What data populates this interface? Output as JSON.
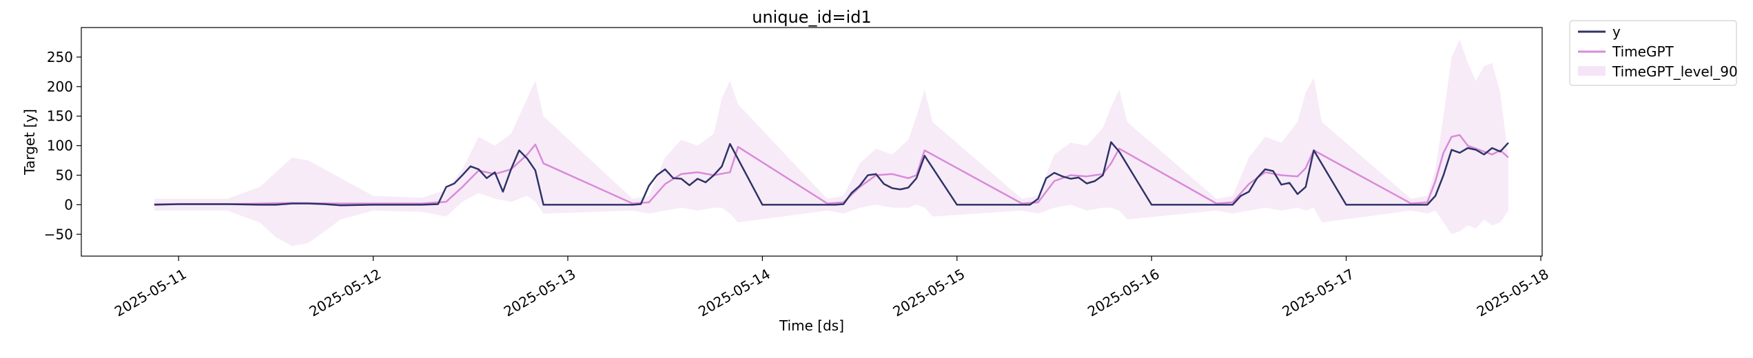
{
  "chart_data": {
    "type": "line",
    "title": "unique_id=id1",
    "xlabel": "Time [ds]",
    "ylabel": "Target [y]",
    "x_ticks": [
      "2025-05-11",
      "2025-05-12",
      "2025-05-13",
      "2025-05-14",
      "2025-05-15",
      "2025-05-16",
      "2025-05-17",
      "2025-05-18"
    ],
    "y_ticks": [
      -50,
      0,
      50,
      100,
      150,
      200,
      250
    ],
    "xlim": [
      "2025-05-10T12:00",
      "2025-05-18T00:10"
    ],
    "ylim": [
      -87,
      300
    ],
    "legend_position": "outside-top-right",
    "grid": false,
    "colors": {
      "y": "#2e3366",
      "TimeGPT": "#d98ad8",
      "band": "#f4e4f6"
    },
    "series": [
      {
        "name": "y",
        "x": [
          "2025-05-10T21:00",
          "2025-05-11T00:00",
          "2025-05-11T06:00",
          "2025-05-11T10:00",
          "2025-05-11T12:00",
          "2025-05-11T14:00",
          "2025-05-11T16:00",
          "2025-05-11T18:00",
          "2025-05-11T20:00",
          "2025-05-12T00:00",
          "2025-05-12T06:00",
          "2025-05-12T08:00",
          "2025-05-12T09:00",
          "2025-05-12T10:00",
          "2025-05-12T11:00",
          "2025-05-12T12:00",
          "2025-05-12T13:00",
          "2025-05-12T14:00",
          "2025-05-12T15:00",
          "2025-05-12T16:00",
          "2025-05-12T17:00",
          "2025-05-12T18:00",
          "2025-05-12T19:00",
          "2025-05-12T20:00",
          "2025-05-12T21:00",
          "2025-05-13T00:00",
          "2025-05-13T04:00",
          "2025-05-13T08:00",
          "2025-05-13T09:00",
          "2025-05-13T10:00",
          "2025-05-13T11:00",
          "2025-05-13T12:00",
          "2025-05-13T13:00",
          "2025-05-13T14:00",
          "2025-05-13T15:00",
          "2025-05-13T16:00",
          "2025-05-13T17:00",
          "2025-05-13T18:00",
          "2025-05-13T19:00",
          "2025-05-13T20:00",
          "2025-05-14T00:00",
          "2025-05-14T08:00",
          "2025-05-14T09:00",
          "2025-05-14T10:00",
          "2025-05-14T11:00",
          "2025-05-14T12:00",
          "2025-05-14T13:00",
          "2025-05-14T14:00",
          "2025-05-14T15:00",
          "2025-05-14T16:00",
          "2025-05-14T17:00",
          "2025-05-14T18:00",
          "2025-05-14T19:00",
          "2025-05-14T20:00",
          "2025-05-15T00:00",
          "2025-05-15T08:00",
          "2025-05-15T09:00",
          "2025-05-15T10:00",
          "2025-05-15T11:00",
          "2025-05-15T12:00",
          "2025-05-15T13:00",
          "2025-05-15T14:00",
          "2025-05-15T15:00",
          "2025-05-15T16:00",
          "2025-05-15T17:00",
          "2025-05-15T18:00",
          "2025-05-15T19:00",
          "2025-05-15T20:00",
          "2025-05-16T00:00",
          "2025-05-16T08:00",
          "2025-05-16T09:00",
          "2025-05-16T10:00",
          "2025-05-16T11:00",
          "2025-05-16T12:00",
          "2025-05-16T13:00",
          "2025-05-16T14:00",
          "2025-05-16T15:00",
          "2025-05-16T16:00",
          "2025-05-16T17:00",
          "2025-05-16T18:00",
          "2025-05-16T19:00",
          "2025-05-16T20:00",
          "2025-05-17T00:00",
          "2025-05-17T08:00",
          "2025-05-17T09:00",
          "2025-05-17T10:00",
          "2025-05-17T11:00",
          "2025-05-17T12:00",
          "2025-05-17T13:00",
          "2025-05-17T14:00",
          "2025-05-17T15:00",
          "2025-05-17T16:00",
          "2025-05-17T17:00",
          "2025-05-17T18:00",
          "2025-05-17T19:00",
          "2025-05-17T20:00"
        ],
        "values": [
          0,
          1,
          1,
          0,
          0,
          2,
          2,
          1,
          -1,
          0,
          0,
          1,
          30,
          36,
          50,
          65,
          60,
          45,
          55,
          22,
          60,
          92,
          78,
          58,
          0,
          0,
          0,
          0,
          1,
          32,
          50,
          60,
          45,
          44,
          33,
          44,
          38,
          50,
          65,
          103,
          0,
          0,
          0,
          1,
          20,
          32,
          50,
          52,
          35,
          28,
          26,
          29,
          45,
          83,
          0,
          0,
          0,
          10,
          45,
          54,
          48,
          44,
          46,
          36,
          40,
          50,
          106,
          90,
          0,
          0,
          0,
          0,
          15,
          22,
          45,
          60,
          57,
          34,
          37,
          18,
          30,
          92,
          0,
          0,
          0,
          0,
          15,
          50,
          93,
          88,
          96,
          93,
          85,
          96,
          90,
          105
        ]
      },
      {
        "name": "TimeGPT",
        "x": [
          "2025-05-10T21:00",
          "2025-05-11T06:00",
          "2025-05-11T10:00",
          "2025-05-11T14:00",
          "2025-05-11T20:00",
          "2025-05-12T06:00",
          "2025-05-12T09:00",
          "2025-05-12T11:00",
          "2025-05-12T13:00",
          "2025-05-12T15:00",
          "2025-05-12T17:00",
          "2025-05-12T19:00",
          "2025-05-12T20:00",
          "2025-05-12T21:00",
          "2025-05-13T08:00",
          "2025-05-13T10:00",
          "2025-05-13T12:00",
          "2025-05-13T14:00",
          "2025-05-13T16:00",
          "2025-05-13T18:00",
          "2025-05-13T20:00",
          "2025-05-13T21:00",
          "2025-05-14T08:00",
          "2025-05-14T10:00",
          "2025-05-14T12:00",
          "2025-05-14T14:00",
          "2025-05-14T16:00",
          "2025-05-14T18:00",
          "2025-05-14T19:00",
          "2025-05-14T20:00",
          "2025-05-15T08:00",
          "2025-05-15T10:00",
          "2025-05-15T12:00",
          "2025-05-15T14:00",
          "2025-05-15T16:00",
          "2025-05-15T18:00",
          "2025-05-15T19:00",
          "2025-05-15T20:00",
          "2025-05-16T08:00",
          "2025-05-16T10:00",
          "2025-05-16T12:00",
          "2025-05-16T14:00",
          "2025-05-16T16:00",
          "2025-05-16T18:00",
          "2025-05-16T19:00",
          "2025-05-16T20:00",
          "2025-05-17T08:00",
          "2025-05-17T10:00",
          "2025-05-17T11:00",
          "2025-05-17T12:00",
          "2025-05-17T13:00",
          "2025-05-17T14:00",
          "2025-05-17T15:00",
          "2025-05-17T16:00",
          "2025-05-17T18:00",
          "2025-05-17T19:00",
          "2025-05-17T20:00"
        ],
        "values": [
          1,
          1,
          2,
          3,
          2,
          2,
          5,
          30,
          58,
          52,
          60,
          85,
          102,
          70,
          2,
          4,
          35,
          52,
          55,
          50,
          55,
          98,
          2,
          4,
          30,
          50,
          52,
          45,
          50,
          92,
          2,
          4,
          40,
          50,
          48,
          52,
          70,
          95,
          2,
          4,
          35,
          55,
          50,
          48,
          62,
          92,
          2,
          4,
          40,
          88,
          115,
          118,
          100,
          95,
          85,
          92,
          80
        ]
      },
      {
        "name": "TimeGPT_level_90",
        "x": [
          "2025-05-10T21:00",
          "2025-05-11T06:00",
          "2025-05-11T10:00",
          "2025-05-11T12:00",
          "2025-05-11T14:00",
          "2025-05-11T16:00",
          "2025-05-11T18:00",
          "2025-05-11T20:00",
          "2025-05-12T00:00",
          "2025-05-12T06:00",
          "2025-05-12T09:00",
          "2025-05-12T11:00",
          "2025-05-12T13:00",
          "2025-05-12T15:00",
          "2025-05-12T17:00",
          "2025-05-12T19:00",
          "2025-05-12T20:00",
          "2025-05-12T21:00",
          "2025-05-13T08:00",
          "2025-05-13T10:00",
          "2025-05-13T12:00",
          "2025-05-13T14:00",
          "2025-05-13T16:00",
          "2025-05-13T18:00",
          "2025-05-13T19:00",
          "2025-05-13T20:00",
          "2025-05-13T21:00",
          "2025-05-14T08:00",
          "2025-05-14T10:00",
          "2025-05-14T12:00",
          "2025-05-14T14:00",
          "2025-05-14T16:00",
          "2025-05-14T18:00",
          "2025-05-14T19:00",
          "2025-05-14T20:00",
          "2025-05-14T21:00",
          "2025-05-15T08:00",
          "2025-05-15T10:00",
          "2025-05-15T12:00",
          "2025-05-15T14:00",
          "2025-05-15T16:00",
          "2025-05-15T18:00",
          "2025-05-15T19:00",
          "2025-05-15T20:00",
          "2025-05-15T21:00",
          "2025-05-16T08:00",
          "2025-05-16T10:00",
          "2025-05-16T12:00",
          "2025-05-16T14:00",
          "2025-05-16T16:00",
          "2025-05-16T18:00",
          "2025-05-16T19:00",
          "2025-05-16T20:00",
          "2025-05-16T21:00",
          "2025-05-17T08:00",
          "2025-05-17T10:00",
          "2025-05-17T11:00",
          "2025-05-17T12:00",
          "2025-05-17T13:00",
          "2025-05-17T14:00",
          "2025-05-17T15:00",
          "2025-05-17T16:00",
          "2025-05-17T17:00",
          "2025-05-17T18:00",
          "2025-05-17T19:00",
          "2025-05-17T20:00"
        ],
        "upper": [
          10,
          10,
          30,
          55,
          80,
          75,
          60,
          45,
          15,
          12,
          25,
          60,
          115,
          100,
          120,
          180,
          210,
          150,
          10,
          15,
          80,
          110,
          100,
          120,
          180,
          210,
          170,
          10,
          15,
          70,
          95,
          85,
          110,
          150,
          195,
          140,
          10,
          15,
          85,
          105,
          100,
          130,
          165,
          195,
          140,
          10,
          15,
          80,
          115,
          105,
          140,
          190,
          215,
          140,
          10,
          15,
          60,
          150,
          250,
          280,
          240,
          210,
          235,
          240,
          190,
          80
        ],
        "lower": [
          -10,
          -10,
          -30,
          -55,
          -70,
          -65,
          -45,
          -25,
          -10,
          -12,
          -20,
          5,
          20,
          10,
          5,
          15,
          5,
          -15,
          -10,
          -15,
          -10,
          -5,
          -10,
          -5,
          -5,
          -15,
          -30,
          -10,
          -15,
          -5,
          0,
          -5,
          -5,
          0,
          -5,
          -20,
          -10,
          -15,
          -5,
          0,
          -10,
          -5,
          -5,
          -10,
          -25,
          -10,
          -15,
          -10,
          -5,
          -10,
          -5,
          -10,
          -5,
          -30,
          -10,
          -15,
          -10,
          -30,
          -50,
          -45,
          -35,
          -40,
          -25,
          -35,
          -30,
          -10
        ]
      }
    ]
  }
}
